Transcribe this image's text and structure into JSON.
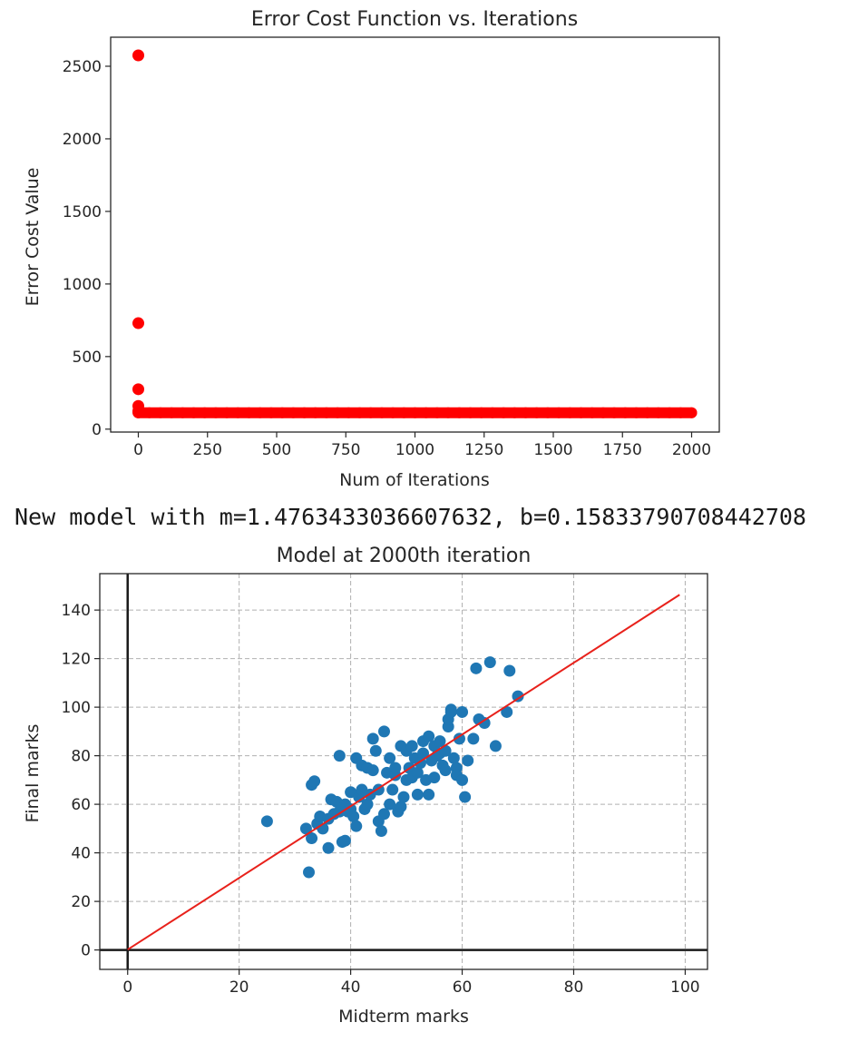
{
  "output_text": "New model with m=1.4763433036607632, b=0.15833790708442708",
  "colors": {
    "cost_points": "#ff0000",
    "scatter_points": "#1f77b4",
    "fit_line": "#e8211b",
    "axes": "#262626",
    "grid": "#b0b0b0"
  },
  "chart_data": [
    {
      "type": "scatter",
      "title": "Error Cost Function vs. Iterations",
      "xlabel": "Num of Iterations",
      "ylabel": "Error Cost Value",
      "xlim": [
        -100,
        2100
      ],
      "ylim": [
        -20,
        2700
      ],
      "xticks": [
        0,
        250,
        500,
        750,
        1000,
        1250,
        1500,
        1750,
        2000
      ],
      "yticks": [
        0,
        500,
        1000,
        1500,
        2000,
        2500
      ],
      "grid": false,
      "series": [
        {
          "color": "#ff0000",
          "leading_points": [
            [
              0,
              2575
            ],
            [
              0,
              730
            ],
            [
              0,
              275
            ],
            [
              0,
              160
            ],
            [
              0,
              125
            ],
            [
              0,
              115
            ]
          ],
          "plateau": {
            "x_start": 0,
            "x_end": 2000,
            "y": 113
          }
        }
      ]
    },
    {
      "type": "scatter",
      "title": "Model at 2000th iteration",
      "xlabel": "Midterm marks",
      "ylabel": "Final marks",
      "xlim": [
        -5,
        104
      ],
      "ylim": [
        -8,
        155
      ],
      "xticks": [
        0,
        20,
        40,
        60,
        80,
        100
      ],
      "yticks": [
        0,
        20,
        40,
        60,
        80,
        100,
        120,
        140
      ],
      "grid": true,
      "line": {
        "m": 1.4763433036607632,
        "b": 0.15833790708442708,
        "x_range": [
          0,
          99
        ],
        "color": "#e8211b"
      },
      "points": [
        [
          25,
          53
        ],
        [
          32,
          50
        ],
        [
          32.5,
          32
        ],
        [
          33,
          46
        ],
        [
          33,
          68
        ],
        [
          33.5,
          69.5
        ],
        [
          34,
          52
        ],
        [
          34.5,
          55
        ],
        [
          35,
          50
        ],
        [
          36,
          42
        ],
        [
          36,
          54
        ],
        [
          36.5,
          62
        ],
        [
          37,
          56
        ],
        [
          37.5,
          61
        ],
        [
          38,
          80
        ],
        [
          38,
          57
        ],
        [
          38.5,
          44.5
        ],
        [
          39,
          45
        ],
        [
          39,
          60
        ],
        [
          39.5,
          57
        ],
        [
          40,
          65
        ],
        [
          40,
          58
        ],
        [
          40.5,
          55
        ],
        [
          41,
          79
        ],
        [
          41,
          51
        ],
        [
          41.5,
          63
        ],
        [
          42,
          66
        ],
        [
          42,
          76
        ],
        [
          42.5,
          58
        ],
        [
          43,
          60
        ],
        [
          43,
          75
        ],
        [
          43.5,
          64
        ],
        [
          44,
          87
        ],
        [
          44,
          74
        ],
        [
          44.5,
          82
        ],
        [
          45,
          53
        ],
        [
          45,
          66
        ],
        [
          45.5,
          49
        ],
        [
          46,
          90
        ],
        [
          46,
          56
        ],
        [
          46.5,
          73
        ],
        [
          47,
          79
        ],
        [
          47,
          60
        ],
        [
          47.5,
          66
        ],
        [
          48,
          72
        ],
        [
          48,
          75
        ],
        [
          48.5,
          57
        ],
        [
          49,
          59
        ],
        [
          49,
          84
        ],
        [
          49.5,
          63
        ],
        [
          50,
          70
        ],
        [
          50,
          82
        ],
        [
          50.5,
          75
        ],
        [
          51,
          71
        ],
        [
          51,
          84
        ],
        [
          51.5,
          79
        ],
        [
          52,
          64
        ],
        [
          52,
          73
        ],
        [
          52.5,
          77
        ],
        [
          53,
          81
        ],
        [
          53,
          86
        ],
        [
          53.5,
          70
        ],
        [
          54,
          88
        ],
        [
          54,
          64
        ],
        [
          54.5,
          78
        ],
        [
          55,
          71
        ],
        [
          55,
          84
        ],
        [
          55.5,
          80
        ],
        [
          56,
          81
        ],
        [
          56,
          86
        ],
        [
          56.5,
          76
        ],
        [
          57,
          74
        ],
        [
          57,
          82
        ],
        [
          57.5,
          92
        ],
        [
          57.5,
          95
        ],
        [
          58,
          99
        ],
        [
          58,
          98
        ],
        [
          58.5,
          79
        ],
        [
          59,
          75
        ],
        [
          59,
          72
        ],
        [
          59.5,
          87
        ],
        [
          60,
          98
        ],
        [
          60,
          70
        ],
        [
          60.5,
          63
        ],
        [
          61,
          78
        ],
        [
          62,
          87
        ],
        [
          62.5,
          116
        ],
        [
          63,
          95
        ],
        [
          64,
          93.5
        ],
        [
          65,
          118.5
        ],
        [
          66,
          84
        ],
        [
          68,
          98
        ],
        [
          68.5,
          115
        ],
        [
          70,
          104.5
        ]
      ]
    }
  ]
}
